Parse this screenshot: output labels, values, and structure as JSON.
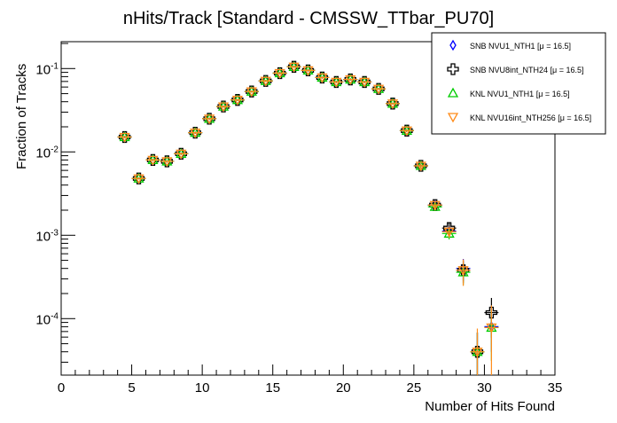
{
  "chart_data": {
    "type": "scatter",
    "title": "nHits/Track [Standard - CMSSW_TTbar_PU70]",
    "xlabel": "Number of Hits Found",
    "ylabel": "Fraction of Tracks",
    "xlim": [
      0,
      35
    ],
    "ylim": [
      2.1e-05,
      0.21
    ],
    "yscale": "log",
    "x_ticks": [
      "0",
      "5",
      "10",
      "15",
      "20",
      "25",
      "30",
      "35"
    ],
    "y_ticks": [
      {
        "base": "10",
        "exp": "-1",
        "value": 0.1
      },
      {
        "base": "10",
        "exp": "-2",
        "value": 0.01
      },
      {
        "base": "10",
        "exp": "-3",
        "value": 0.001
      },
      {
        "base": "10",
        "exp": "-4",
        "value": 0.0001
      }
    ],
    "legend_position": "top-right",
    "x": [
      4.5,
      5.5,
      6.5,
      7.5,
      8.5,
      9.5,
      10.5,
      11.5,
      12.5,
      13.5,
      14.5,
      15.5,
      16.5,
      17.5,
      18.5,
      19.5,
      20.5,
      21.5,
      22.5,
      23.5,
      24.5,
      25.5,
      26.5,
      27.5,
      28.5,
      29.5,
      30.5
    ],
    "series": [
      {
        "name": "SNB NVU1_NTH1 [μ = 16.5]",
        "color": "#0000ff",
        "marker": "diamond",
        "values": [
          0.0151,
          0.0048,
          0.008,
          0.0077,
          0.0095,
          0.017,
          0.025,
          0.035,
          0.042,
          0.053,
          0.071,
          0.088,
          0.105,
          0.095,
          0.078,
          0.069,
          0.074,
          0.069,
          0.057,
          0.038,
          0.018,
          0.0068,
          0.0023,
          0.00112,
          0.0004,
          4e-05,
          8e-05
        ],
        "rel_err": [
          0.03,
          0.03,
          0.03,
          0.03,
          0.03,
          0.03,
          0.03,
          0.03,
          0.03,
          0.03,
          0.03,
          0.03,
          0.03,
          0.03,
          0.03,
          0.03,
          0.03,
          0.03,
          0.03,
          0.03,
          0.04,
          0.06,
          0.1,
          0.15,
          0.3,
          0.7,
          0.5
        ]
      },
      {
        "name": "SNB NVU8int_NTH24 [μ = 16.5]",
        "color": "#000000",
        "marker": "cross",
        "values": [
          0.0151,
          0.0048,
          0.008,
          0.0077,
          0.0095,
          0.017,
          0.025,
          0.035,
          0.042,
          0.053,
          0.071,
          0.088,
          0.105,
          0.095,
          0.078,
          0.069,
          0.074,
          0.069,
          0.057,
          0.038,
          0.018,
          0.0068,
          0.0023,
          0.00122,
          0.00038,
          4e-05,
          0.000118
        ],
        "rel_err": [
          0.03,
          0.03,
          0.03,
          0.03,
          0.03,
          0.03,
          0.03,
          0.03,
          0.03,
          0.03,
          0.03,
          0.03,
          0.03,
          0.03,
          0.03,
          0.03,
          0.03,
          0.03,
          0.03,
          0.03,
          0.04,
          0.06,
          0.1,
          0.15,
          0.3,
          0.7,
          0.5
        ]
      },
      {
        "name": "KNL NVU1_NTH1 [μ = 16.5]",
        "color": "#00cc00",
        "marker": "triangle-up",
        "values": [
          0.0151,
          0.0048,
          0.008,
          0.0077,
          0.0095,
          0.017,
          0.025,
          0.035,
          0.042,
          0.053,
          0.071,
          0.088,
          0.105,
          0.095,
          0.078,
          0.069,
          0.074,
          0.069,
          0.057,
          0.038,
          0.018,
          0.0068,
          0.0022,
          0.00105,
          0.00036,
          4e-05,
          7.8e-05
        ],
        "rel_err": [
          0.03,
          0.03,
          0.03,
          0.03,
          0.03,
          0.03,
          0.03,
          0.03,
          0.03,
          0.03,
          0.03,
          0.03,
          0.03,
          0.03,
          0.03,
          0.03,
          0.03,
          0.03,
          0.03,
          0.03,
          0.04,
          0.06,
          0.1,
          0.15,
          0.3,
          0.7,
          0.6
        ]
      },
      {
        "name": "KNL NVU16int_NTH256 [μ = 16.5]",
        "color": "#ff8c1a",
        "marker": "triangle-down",
        "values": [
          0.0151,
          0.0048,
          0.008,
          0.0077,
          0.0095,
          0.017,
          0.025,
          0.035,
          0.042,
          0.053,
          0.071,
          0.088,
          0.105,
          0.095,
          0.078,
          0.069,
          0.074,
          0.069,
          0.057,
          0.038,
          0.018,
          0.0068,
          0.0023,
          0.0011,
          0.00038,
          4e-05,
          7.8e-05
        ],
        "rel_err": [
          0.03,
          0.03,
          0.03,
          0.03,
          0.03,
          0.03,
          0.03,
          0.03,
          0.03,
          0.03,
          0.03,
          0.03,
          0.03,
          0.03,
          0.03,
          0.03,
          0.03,
          0.03,
          0.03,
          0.03,
          0.04,
          0.06,
          0.1,
          0.15,
          0.35,
          0.9,
          0.85
        ]
      }
    ]
  }
}
